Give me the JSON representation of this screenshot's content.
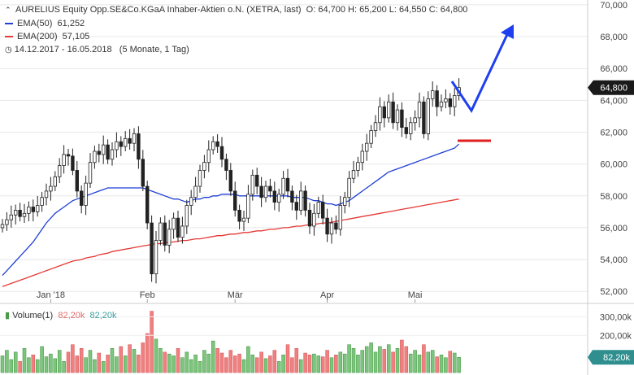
{
  "header": {
    "instrument": "AURELIUS Equity Opp.SE&Co.KGaA Inhaber-Aktien o.N. (XETRA, last)",
    "ohlc": "O: 64,700  H: 65,200  L: 64,550  C: 64,800",
    "ema50_label": "EMA(50)",
    "ema50_value": "61,252",
    "ema200_label": "EMA(200)",
    "ema200_value": "57,105",
    "period": "14.12.2017 - 16.05.2018",
    "period_detail": "(5 Monate, 1 Tag)"
  },
  "volume_legend": {
    "label": "Volume(1)",
    "value1": "82,20k",
    "value2": "82,20k"
  },
  "colors": {
    "ema50": "#1f3fd6",
    "ema200": "#e53935",
    "arrow": "#1e3ff0",
    "target_line": "#e02020",
    "vol_up": "#7cc57c",
    "vol_down": "#f08080",
    "price_badge": "#1a1a1a"
  },
  "chart_data": {
    "type": "candlestick",
    "ylim": [
      51.5,
      70.2
    ],
    "yticks": [
      52,
      54,
      56,
      58,
      60,
      62,
      64,
      66,
      68,
      70
    ],
    "ytick_labels": [
      "52,000",
      "54,000",
      "56,000",
      "58,000",
      "60,000",
      "62,000",
      "64,000",
      "66,000",
      "68,000",
      "70,000"
    ],
    "last_price_label": "64,800",
    "last_price": 64.8,
    "x_labels": [
      {
        "label": "Jan '18",
        "index": 11
      },
      {
        "label": "Feb",
        "index": 33
      },
      {
        "label": "Mär",
        "index": 53
      },
      {
        "label": "Apr",
        "index": 74
      },
      {
        "label": "Mai",
        "index": 94
      }
    ],
    "close": [
      56.2,
      56.5,
      56.8,
      57.1,
      56.7,
      56.9,
      57.3,
      57.0,
      57.4,
      57.9,
      58.3,
      58.6,
      59.2,
      59.9,
      60.6,
      60.5,
      59.6,
      58.3,
      57.4,
      58.8,
      60.1,
      60.8,
      60.6,
      61.2,
      60.3,
      60.9,
      61.4,
      61.1,
      61.6,
      61.3,
      61.9,
      60.3,
      58.6,
      56.3,
      53.1,
      55.2,
      56.3,
      54.9,
      55.9,
      56.6,
      55.4,
      56.1,
      57.4,
      57.9,
      58.6,
      59.6,
      60.1,
      60.9,
      61.4,
      61.1,
      60.3,
      59.6,
      58.3,
      57.1,
      56.4,
      56.6,
      58.1,
      59.3,
      58.6,
      57.9,
      58.6,
      58.3,
      57.6,
      58.1,
      59.1,
      58.3,
      57.6,
      57.1,
      58.3,
      57.1,
      56.1,
      56.9,
      57.6,
      56.6,
      55.6,
      56.3,
      55.9,
      57.4,
      57.9,
      59.1,
      59.6,
      60.1,
      60.8,
      61.3,
      62.1,
      62.6,
      63.6,
      62.9,
      63.9,
      62.6,
      63.4,
      62.3,
      61.9,
      62.6,
      62.9,
      63.9,
      61.9,
      64.1,
      64.6,
      63.6,
      63.9,
      64.1,
      63.6,
      64.3,
      64.8
    ],
    "ema50": [
      53.0,
      53.3,
      53.6,
      53.9,
      54.2,
      54.5,
      54.8,
      55.1,
      55.5,
      55.9,
      56.3,
      56.6,
      56.9,
      57.1,
      57.3,
      57.5,
      57.7,
      57.8,
      57.9,
      58.0,
      58.1,
      58.2,
      58.3,
      58.4,
      58.5,
      58.5,
      58.5,
      58.5,
      58.5,
      58.5,
      58.5,
      58.5,
      58.5,
      58.4,
      58.3,
      58.2,
      58.1,
      58.0,
      57.9,
      57.8,
      57.8,
      57.7,
      57.6,
      57.7,
      57.8,
      57.8,
      57.9,
      57.9,
      58.0,
      58.0,
      58.1,
      58.1,
      58.1,
      58.1,
      58.0,
      58.0,
      58.0,
      58.0,
      58.0,
      58.0,
      58.0,
      58.0,
      58.0,
      58.0,
      58.0,
      58.0,
      57.9,
      57.9,
      57.9,
      57.9,
      57.8,
      57.7,
      57.7,
      57.6,
      57.5,
      57.5,
      57.4,
      57.5,
      57.6,
      57.7,
      57.9,
      58.1,
      58.3,
      58.5,
      58.7,
      58.9,
      59.1,
      59.3,
      59.5,
      59.6,
      59.7,
      59.8,
      59.9,
      60.0,
      60.1,
      60.2,
      60.3,
      60.4,
      60.5,
      60.6,
      60.7,
      60.8,
      60.9,
      61.0,
      61.25
    ],
    "ema200": [
      52.3,
      52.4,
      52.5,
      52.6,
      52.7,
      52.8,
      52.9,
      53.0,
      53.1,
      53.2,
      53.3,
      53.4,
      53.5,
      53.6,
      53.7,
      53.8,
      53.9,
      53.95,
      54.0,
      54.1,
      54.15,
      54.2,
      54.3,
      54.35,
      54.4,
      54.5,
      54.55,
      54.6,
      54.65,
      54.7,
      54.75,
      54.8,
      54.85,
      54.9,
      54.95,
      55.0,
      55.0,
      55.05,
      55.1,
      55.1,
      55.15,
      55.2,
      55.2,
      55.25,
      55.3,
      55.3,
      55.35,
      55.4,
      55.45,
      55.5,
      55.5,
      55.55,
      55.6,
      55.6,
      55.65,
      55.7,
      55.7,
      55.75,
      55.8,
      55.8,
      55.85,
      55.9,
      55.9,
      55.95,
      56.0,
      56.0,
      56.05,
      56.1,
      56.1,
      56.15,
      56.2,
      56.2,
      56.25,
      56.3,
      56.3,
      56.35,
      56.4,
      56.45,
      56.5,
      56.55,
      56.6,
      56.65,
      56.7,
      56.75,
      56.8,
      56.85,
      56.9,
      56.95,
      57.0,
      57.05,
      57.1,
      57.15,
      57.2,
      57.25,
      57.3,
      57.35,
      57.4,
      57.45,
      57.5,
      57.55,
      57.6,
      57.65,
      57.7,
      57.75,
      57.105
    ],
    "volume_ticks": [
      "300,00k",
      "200,00k"
    ],
    "volume_tick_values": [
      300000,
      200000
    ],
    "volume_ylim": [
      0,
      350000
    ],
    "volume": [
      90000,
      120000,
      70000,
      110000,
      60000,
      130000,
      80000,
      95000,
      70000,
      140000,
      85000,
      100000,
      75000,
      120000,
      60000,
      110000,
      150000,
      90000,
      130000,
      80000,
      120000,
      70000,
      105000,
      60000,
      95000,
      130000,
      85000,
      140000,
      90000,
      150000,
      125000,
      95000,
      160000,
      210000,
      330000,
      180000,
      130000,
      110000,
      100000,
      90000,
      130000,
      80000,
      110000,
      70000,
      95000,
      60000,
      120000,
      100000,
      170000,
      130000,
      105000,
      80000,
      120000,
      90000,
      100000,
      70000,
      140000,
      95000,
      80000,
      110000,
      75000,
      90000,
      120000,
      60000,
      95000,
      150000,
      80000,
      130000,
      70000,
      105000,
      95000,
      100000,
      90000,
      85000,
      120000,
      80000,
      95000,
      110000,
      100000,
      150000,
      130000,
      95000,
      120000,
      140000,
      160000,
      110000,
      140000,
      125000,
      150000,
      110000,
      130000,
      175000,
      140000,
      100000,
      120000,
      95000,
      150000,
      110000,
      120000,
      85000,
      95000,
      80000,
      115000,
      105000,
      82200
    ]
  }
}
